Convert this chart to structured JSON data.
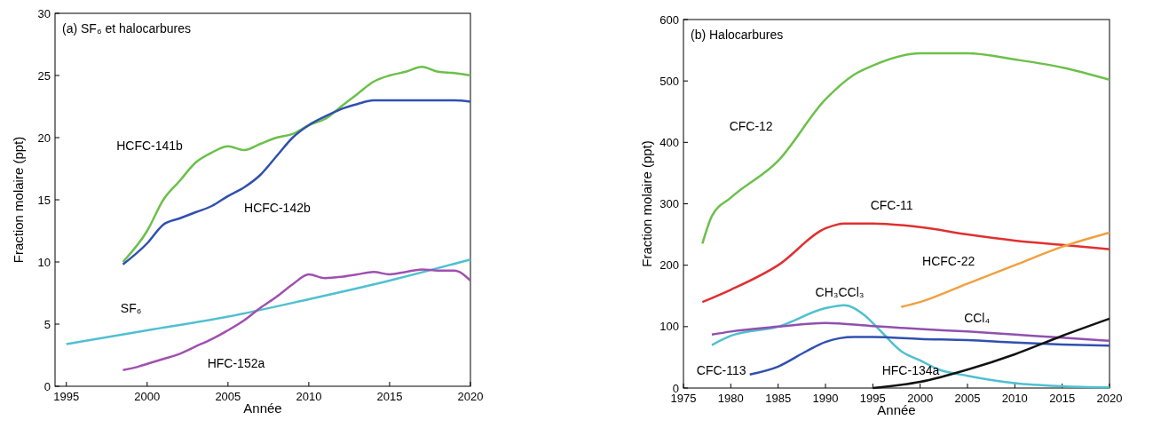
{
  "chart_data": [
    {
      "type": "line",
      "title": "(a) SF₆ et halocarbures",
      "xlabel": "Année",
      "ylabel": "Fraction molaire (ppt)",
      "xlim": [
        1994.3,
        2020
      ],
      "ylim": [
        0,
        30
      ],
      "xticks": [
        1995,
        2000,
        2005,
        2010,
        2015,
        2020
      ],
      "yticks": [
        0,
        5,
        10,
        15,
        20,
        25,
        30
      ],
      "grid": false,
      "marker": "none",
      "line_style": "solid",
      "series": [
        {
          "name": "HCFC-141b",
          "color": "#6cc04a",
          "x": [
            1998.5,
            2000,
            2001,
            2002,
            2003,
            2004,
            2005,
            2006,
            2007,
            2008,
            2009,
            2010,
            2011,
            2012,
            2013,
            2014,
            2015,
            2016,
            2017,
            2018,
            2019,
            2020
          ],
          "values": [
            10,
            12.5,
            15,
            16.5,
            18,
            18.8,
            19.3,
            19,
            19.5,
            20,
            20.3,
            21,
            21.5,
            22.5,
            23.5,
            24.5,
            25,
            25.3,
            25.7,
            25.3,
            25.2,
            25
          ]
        },
        {
          "name": "HCFC-142b",
          "color": "#3050b0",
          "x": [
            1998.5,
            2000,
            2001,
            2002,
            2003,
            2004,
            2005,
            2006,
            2007,
            2008,
            2009,
            2010,
            2011,
            2012,
            2013,
            2014,
            2015,
            2016,
            2017,
            2018,
            2019,
            2020
          ],
          "values": [
            9.8,
            11.5,
            13,
            13.5,
            14,
            14.5,
            15.3,
            16,
            17,
            18.5,
            20,
            21,
            21.7,
            22.3,
            22.7,
            23,
            23,
            23,
            23,
            23,
            23,
            22.9
          ]
        },
        {
          "name": "SF₆",
          "color": "#4fc0d0",
          "x": [
            1995,
            2000,
            2005,
            2010,
            2015,
            2020
          ],
          "values": [
            3.4,
            4.5,
            5.6,
            7,
            8.5,
            10.2
          ]
        },
        {
          "name": "HFC-152a",
          "color": "#a050b0",
          "x": [
            1998.5,
            1999.5,
            2000,
            2001,
            2002,
            2003,
            2004,
            2005,
            2006,
            2007,
            2008,
            2009,
            2010,
            2011,
            2012,
            2013,
            2014,
            2015,
            2016,
            2017,
            2018,
            2019,
            2020
          ],
          "values": [
            1.3,
            1.6,
            1.8,
            2.2,
            2.6,
            3.2,
            3.8,
            4.5,
            5.3,
            6.3,
            7.2,
            8.2,
            9,
            8.7,
            8.8,
            9,
            9.2,
            9,
            9.2,
            9.4,
            9.3,
            9.3,
            8.5
          ]
        }
      ]
    },
    {
      "type": "line",
      "title": "(b) Halocarbures",
      "xlabel": "Année",
      "ylabel": "Fraction molaire (ppt)",
      "xlim": [
        1975,
        2020
      ],
      "ylim": [
        0,
        600
      ],
      "xticks": [
        1975,
        1980,
        1985,
        1990,
        1995,
        2000,
        2005,
        2010,
        2015,
        2020
      ],
      "yticks": [
        0,
        100,
        200,
        300,
        400,
        500,
        600
      ],
      "grid": false,
      "marker": "none",
      "line_style": "solid",
      "series": [
        {
          "name": "CFC-12",
          "color": "#6cc04a",
          "x": [
            1977,
            1978,
            1980,
            1985,
            1990,
            1993,
            1995,
            2000,
            2005,
            2010,
            2015,
            2020
          ],
          "values": [
            235,
            280,
            310,
            370,
            470,
            510,
            525,
            545,
            545,
            535,
            522,
            502
          ]
        },
        {
          "name": "CFC-11",
          "color": "#e03030",
          "x": [
            1977,
            1980,
            1985,
            1990,
            1992,
            1995,
            2000,
            2005,
            2010,
            2015,
            2020
          ],
          "values": [
            140,
            160,
            200,
            260,
            268,
            268,
            262,
            250,
            240,
            233,
            226
          ]
        },
        {
          "name": "HCFC-22",
          "color": "#f0a040",
          "x": [
            1998,
            2000,
            2005,
            2010,
            2015,
            2020
          ],
          "values": [
            132,
            140,
            170,
            200,
            230,
            253
          ]
        },
        {
          "name": "CH₃CCl₃",
          "color": "#4fc0d0",
          "x": [
            1978,
            1980,
            1985,
            1990,
            1992,
            1994,
            1996,
            1998,
            2000,
            2002,
            2005,
            2010,
            2015,
            2020
          ],
          "values": [
            70,
            85,
            100,
            130,
            135,
            120,
            90,
            60,
            45,
            30,
            20,
            8,
            3,
            1
          ]
        },
        {
          "name": "CCl₄",
          "color": "#9050b0",
          "x": [
            1978,
            1980,
            1985,
            1990,
            1995,
            2000,
            2005,
            2010,
            2015,
            2020
          ],
          "values": [
            87,
            92,
            100,
            106,
            101,
            96,
            92,
            87,
            82,
            77
          ]
        },
        {
          "name": "CFC-113",
          "color": "#3050b0",
          "x": [
            1982,
            1985,
            1988,
            1990,
            1993,
            1995,
            2000,
            2005,
            2010,
            2015,
            2020
          ],
          "values": [
            22,
            35,
            60,
            75,
            83,
            83,
            80,
            78,
            74,
            71,
            69
          ]
        },
        {
          "name": "HFC-134a",
          "color": "#111111",
          "x": [
            1995,
            2000,
            2005,
            2010,
            2015,
            2020
          ],
          "values": [
            0,
            10,
            30,
            55,
            85,
            113
          ]
        }
      ]
    }
  ]
}
